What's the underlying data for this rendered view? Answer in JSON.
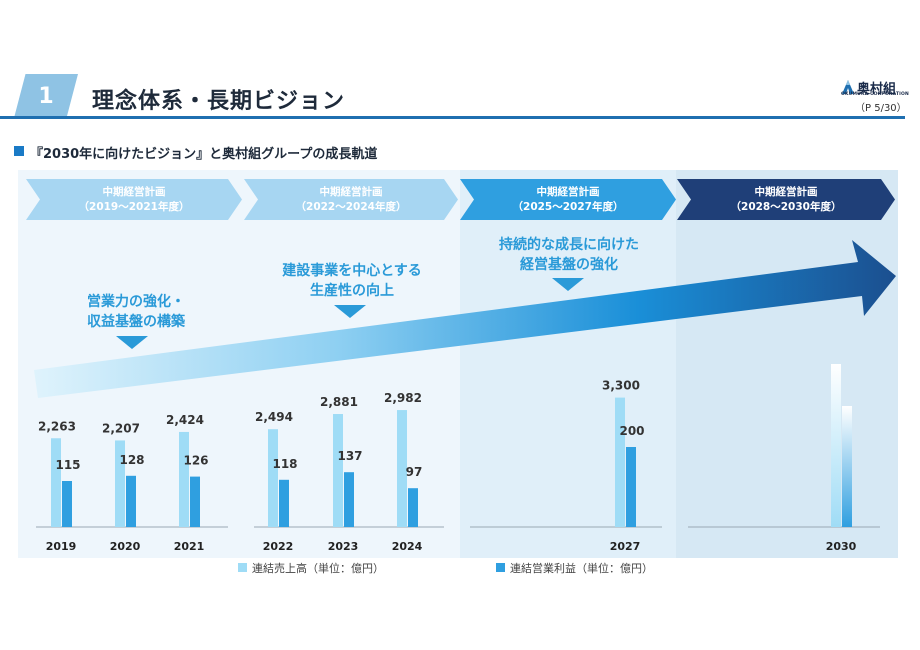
{
  "header": {
    "section_number": "1",
    "title": "理念体系・長期ビジョン",
    "page_number": "（P 5/30）",
    "logo_text": "奥村組",
    "logo_sub": "OKUMURA CORPORATION"
  },
  "subtitle": "『2030年に向けたビジョン』と奥村組グループの成長軌道",
  "plans": [
    {
      "line1": "中期経営計画",
      "line2": "（2019～2021年度）"
    },
    {
      "line1": "中期経営計画",
      "line2": "（2022～2024年度）"
    },
    {
      "line1": "中期経営計画",
      "line2": "（2025～2027年度）"
    },
    {
      "line1": "中期経営計画",
      "line2": "（2028～2030年度）"
    }
  ],
  "messages": [
    {
      "line1": "営業力の強化・",
      "line2": "収益基盤の構築"
    },
    {
      "line1": "建設事業を中心とする",
      "line2": "生産性の向上"
    },
    {
      "line1": "持続的な成長に向けた",
      "line2": "経営基盤の強化"
    }
  ],
  "legend": {
    "sales": "連結売上高（単位：億円）",
    "profit": "連結営業利益（単位：億円）"
  },
  "colors": {
    "sales": "#9fdcf6",
    "profit": "#2f9fe0",
    "plan1": "#a7d6f2",
    "plan2": "#a7d6f2",
    "plan3": "#2f9fe0",
    "plan4": "#1f3f78"
  },
  "chart_data": {
    "type": "bar",
    "title": "『2030年に向けたビジョン』と奥村組グループの成長軌道",
    "categories": [
      "2019",
      "2020",
      "2021",
      "2022",
      "2023",
      "2024",
      "2027",
      "2030"
    ],
    "series": [
      {
        "name": "連結売上高（単位：億円）",
        "values": [
          2263,
          2207,
          2424,
          2494,
          2881,
          2982,
          3300,
          null
        ],
        "labels": [
          "2,263",
          "2,207",
          "2,424",
          "2,494",
          "2,881",
          "2,982",
          "3,300",
          ""
        ]
      },
      {
        "name": "連結営業利益（単位：億円）",
        "values": [
          115,
          128,
          126,
          118,
          137,
          97,
          200,
          null
        ],
        "labels": [
          "115",
          "128",
          "126",
          "118",
          "137",
          "97",
          "200",
          ""
        ]
      }
    ],
    "xlabel": "",
    "ylabel": "",
    "grid": false,
    "legend": "bottom"
  }
}
